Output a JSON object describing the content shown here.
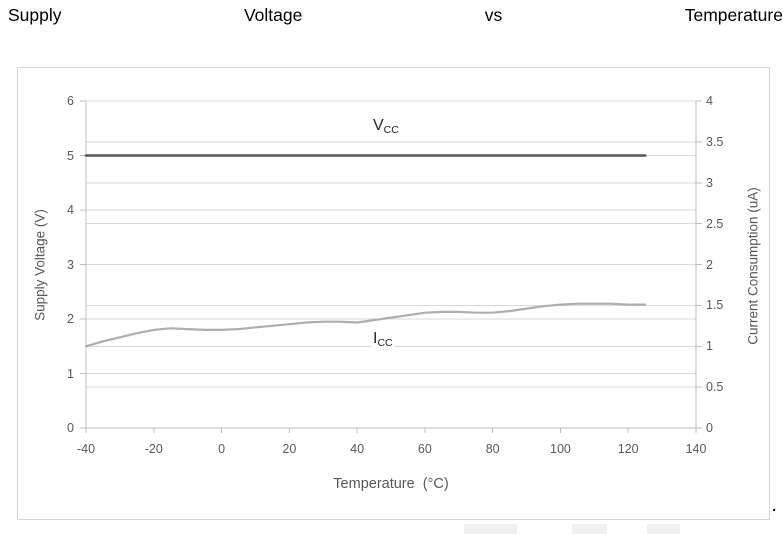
{
  "title": {
    "text": "Supply Voltage vs Temperature",
    "words": [
      "Supply",
      "Voltage",
      "vs",
      "Temperature"
    ]
  },
  "trailing_period": ".",
  "colors": {
    "title_text": "#000000",
    "axis_text": "#595959",
    "axis_line": "#bfbfbf",
    "gridline": "#d9d9d9",
    "vcc_line": "#575757",
    "icc_line": "#aeaeae",
    "series_label_text": "#262626",
    "panel_border": "#d6d6d6"
  },
  "chart_data": {
    "type": "line",
    "title": "Supply Voltage vs Temperature",
    "grid": "on",
    "legend_position": "none",
    "x_axis": {
      "label": "Temperature  (°C)",
      "min": -40,
      "max": 140,
      "tick_step": 20,
      "ticks": [
        -40,
        -20,
        0,
        20,
        40,
        60,
        80,
        100,
        120,
        140
      ]
    },
    "y_axis_left": {
      "label": "Supply Voltage (V)",
      "min": 0,
      "max": 6,
      "tick_step": 1,
      "ticks": [
        6,
        5,
        4,
        3,
        2,
        1,
        0
      ]
    },
    "y_axis_right": {
      "label": "Current Consumption (uA)",
      "min": 0,
      "max": 4,
      "tick_step": 0.5,
      "ticks": [
        4,
        3.5,
        3,
        2.5,
        2,
        1.5,
        1,
        0.5,
        0
      ]
    },
    "gridlines": {
      "left_axis_values": [
        1,
        2,
        3,
        4,
        5,
        6
      ],
      "right_axis_values": [
        0.5,
        1,
        1.5,
        2,
        2.5,
        3,
        3.5,
        4
      ]
    },
    "series": [
      {
        "name": "VCC",
        "label": {
          "base": "V",
          "sub": "CC"
        },
        "axis": "left",
        "unit": "V",
        "color": "#575757",
        "x": [
          -40,
          125
        ],
        "y": [
          5,
          5
        ]
      },
      {
        "name": "ICC",
        "label": {
          "base": "I",
          "sub": "CC"
        },
        "axis": "right",
        "unit": "uA",
        "color": "#aeaeae",
        "x": [
          -40,
          -35,
          -30,
          -25,
          -20,
          -15,
          -10,
          -5,
          0,
          5,
          10,
          15,
          20,
          25,
          30,
          35,
          40,
          45,
          50,
          55,
          60,
          65,
          70,
          75,
          80,
          85,
          90,
          95,
          100,
          105,
          110,
          115,
          120,
          125
        ],
        "y": [
          1.0,
          1.06,
          1.11,
          1.16,
          1.2,
          1.22,
          1.21,
          1.2,
          1.2,
          1.21,
          1.23,
          1.25,
          1.27,
          1.29,
          1.3,
          1.3,
          1.29,
          1.32,
          1.35,
          1.38,
          1.41,
          1.42,
          1.42,
          1.41,
          1.41,
          1.43,
          1.46,
          1.49,
          1.51,
          1.52,
          1.52,
          1.52,
          1.51,
          1.51
        ]
      }
    ]
  }
}
